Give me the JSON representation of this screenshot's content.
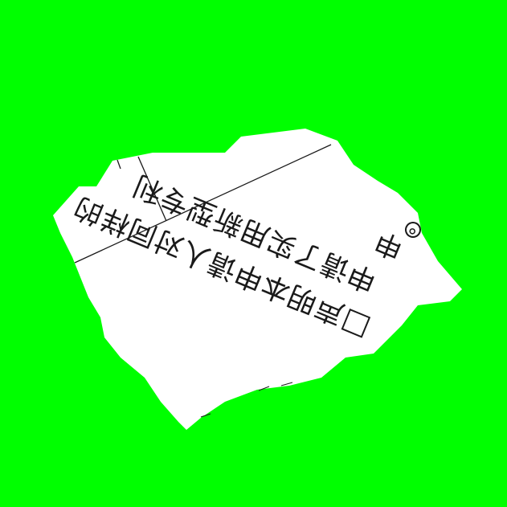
{
  "background_color": "#00ff00",
  "paper_color": "#ffffff",
  "ink_color": "#1a1a1a",
  "document": {
    "line_1": "申请了实用新型专利",
    "line_2": "声明本申请人对同样的",
    "line_0_partial": "申",
    "checkbox_state": "unchecked"
  },
  "icons": {
    "checkbox": "empty-square-checkbox",
    "edge_mark": "circle-mark"
  }
}
